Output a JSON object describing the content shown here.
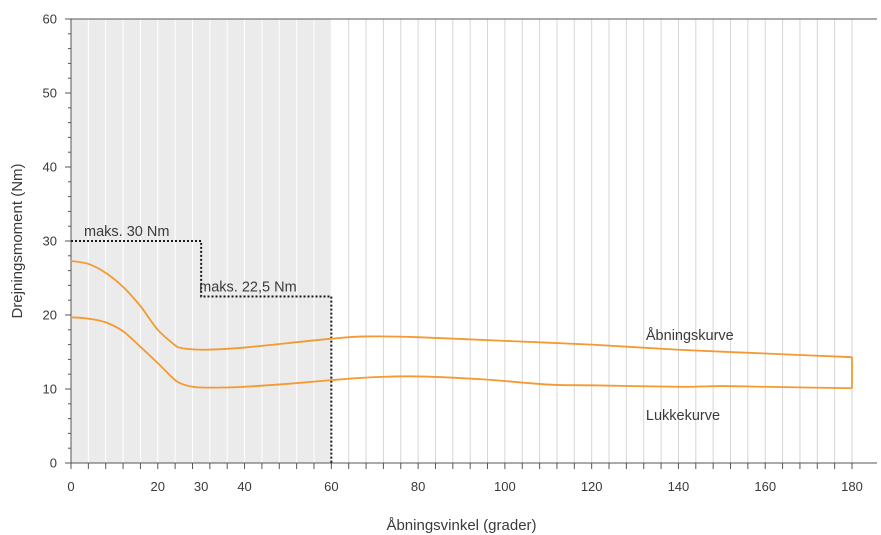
{
  "chart_data": {
    "type": "line",
    "title": "",
    "xlabel": "Åbningsvinkel (grader)",
    "ylabel": "Drejningsmoment (Nm)",
    "xlim": [
      0,
      180
    ],
    "ylim": [
      0,
      60
    ],
    "x_ticks": [
      0,
      20,
      30,
      40,
      60,
      80,
      100,
      120,
      140,
      160,
      180
    ],
    "x_tick_labels": [
      "0",
      "20",
      "30",
      "40",
      "60",
      "80",
      "100",
      "120",
      "140",
      "160",
      "180"
    ],
    "y_ticks": [
      0,
      10,
      20,
      30,
      40,
      50,
      60
    ],
    "y_tick_labels": [
      "0",
      "10",
      "20",
      "30",
      "40",
      "50",
      "60"
    ],
    "grid": {
      "vertical_every": 4,
      "horizontal": false
    },
    "shaded_region": {
      "x": [
        0,
        60
      ],
      "color": "#ebebeb"
    },
    "colors": {
      "curve": "#f39a30",
      "limit": "#1a1a1a",
      "grid": "#d6d6d6",
      "axis": "#555555"
    },
    "series": [
      {
        "name": "Åbningskurve",
        "x": [
          0,
          4,
          8,
          12,
          16,
          20,
          24,
          25,
          27,
          30,
          35,
          40,
          50,
          60,
          68,
          80,
          100,
          120,
          140,
          160,
          180
        ],
        "y": [
          27.3,
          26.9,
          25.7,
          23.8,
          21.2,
          18.0,
          15.9,
          15.6,
          15.4,
          15.3,
          15.4,
          15.6,
          16.2,
          16.8,
          17.1,
          17.0,
          16.5,
          16.0,
          15.3,
          14.8,
          14.3
        ]
      },
      {
        "name": "Lukkekurve",
        "x": [
          0,
          4,
          8,
          12,
          16,
          20,
          24,
          26,
          28,
          30,
          35,
          40,
          50,
          60,
          70,
          80,
          95,
          110,
          120,
          140,
          150,
          160,
          180
        ],
        "y": [
          19.7,
          19.5,
          19.0,
          17.8,
          15.7,
          13.5,
          11.2,
          10.6,
          10.3,
          10.2,
          10.2,
          10.3,
          10.7,
          11.2,
          11.6,
          11.7,
          11.3,
          10.6,
          10.5,
          10.3,
          10.4,
          10.3,
          10.1
        ]
      }
    ],
    "closing_segment": {
      "x": 180,
      "y": [
        10.1,
        14.3
      ]
    },
    "limits": [
      {
        "label": "maks. 30 Nm",
        "x": [
          0,
          30
        ],
        "y": 30
      },
      {
        "label": "maks. 22,5 Nm",
        "x": [
          30,
          60
        ],
        "y": 22.5
      }
    ],
    "curve_labels": [
      {
        "text": "Åbningskurve",
        "x": 132.5,
        "y": 17.3
      },
      {
        "text": "Lukkekurve",
        "x": 132.5,
        "y": 6.5
      }
    ]
  }
}
